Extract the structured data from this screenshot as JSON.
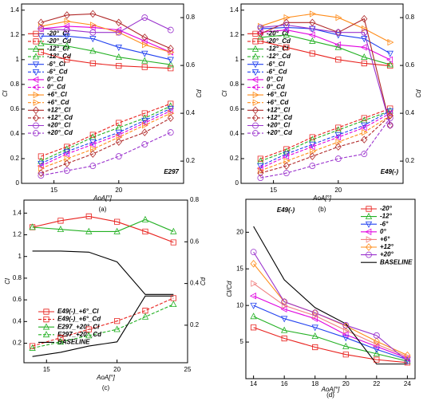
{
  "chart_data": [
    {
      "type": "line",
      "label": "(a)",
      "annotation": "E297",
      "xlabel": "AoA[°]",
      "ylabel": "Cl",
      "y2label": "Cd",
      "legend": "center-left",
      "xlim": [
        12.5,
        25
      ],
      "xticks": [
        15,
        20
      ],
      "ylim": [
        0,
        1.45
      ],
      "yticks": [
        0,
        0.2,
        0.4,
        0.6,
        0.8,
        1,
        1.2,
        1.4
      ],
      "y2lim": [
        0.107,
        0.857
      ],
      "y2ticks": [
        0.2,
        0.4,
        0.6,
        0.8
      ],
      "x": [
        14,
        16,
        18,
        20,
        22,
        24
      ],
      "series": [
        {
          "name": "-20°_Cl",
          "color": "#e8201c",
          "marker": "square",
          "dashed": false,
          "values": [
            1.06,
            1.0,
            0.97,
            0.95,
            0.94,
            0.93
          ]
        },
        {
          "name": "-20°_Cd",
          "color": "#e8201c",
          "marker": "square",
          "dashed": true,
          "axis": "y2",
          "values": [
            0.22,
            0.26,
            0.31,
            0.36,
            0.4,
            0.44
          ]
        },
        {
          "name": "-12°_Cl",
          "color": "#22b022",
          "marker": "triangle",
          "dashed": false,
          "values": [
            1.13,
            1.11,
            1.07,
            1.02,
            0.99,
            0.96
          ]
        },
        {
          "name": "-12°_Cd",
          "color": "#22b022",
          "marker": "triangle",
          "dashed": true,
          "axis": "y2",
          "values": [
            0.2,
            0.25,
            0.3,
            0.34,
            0.38,
            0.43
          ]
        },
        {
          "name": "-6°_Cl",
          "color": "#2040f0",
          "marker": "triangle-down",
          "dashed": false,
          "values": [
            1.19,
            1.19,
            1.17,
            1.1,
            1.05,
            1.0
          ]
        },
        {
          "name": "-6°_Cd",
          "color": "#2040f0",
          "marker": "triangle-down",
          "dashed": true,
          "axis": "y2",
          "values": [
            0.19,
            0.24,
            0.28,
            0.32,
            0.37,
            0.42
          ]
        },
        {
          "name": "0°_Cl",
          "color": "#e000e0",
          "marker": "triangle-left",
          "dashed": false,
          "values": [
            1.25,
            1.27,
            1.26,
            1.24,
            1.15,
            1.06
          ]
        },
        {
          "name": "0°_Cd",
          "color": "#e000e0",
          "marker": "triangle-left",
          "dashed": true,
          "axis": "y2",
          "values": [
            0.18,
            0.23,
            0.27,
            0.31,
            0.36,
            0.41
          ]
        },
        {
          "name": "+6°_Cl",
          "color": "#ff8c1a",
          "marker": "triangle-right",
          "dashed": false,
          "values": [
            1.27,
            1.31,
            1.28,
            1.22,
            1.12,
            1.06
          ]
        },
        {
          "name": "+6°_Cd",
          "color": "#ff8c1a",
          "marker": "triangle-right",
          "dashed": true,
          "axis": "y2",
          "values": [
            0.17,
            0.21,
            0.25,
            0.3,
            0.35,
            0.4
          ]
        },
        {
          "name": "+12°_Cl",
          "color": "#b02828",
          "marker": "diamond",
          "dashed": false,
          "values": [
            1.3,
            1.36,
            1.37,
            1.3,
            1.18,
            1.09
          ]
        },
        {
          "name": "+12°_Cd",
          "color": "#b02828",
          "marker": "diamond",
          "dashed": true,
          "axis": "y2",
          "values": [
            0.15,
            0.19,
            0.23,
            0.28,
            0.32,
            0.38
          ]
        },
        {
          "name": "+20°_Cl",
          "color": "#9a32cd",
          "marker": "circle",
          "dashed": false,
          "values": [
            1.25,
            1.24,
            1.22,
            1.22,
            1.34,
            1.24
          ]
        },
        {
          "name": "+20°_Cd",
          "color": "#9a32cd",
          "marker": "circle",
          "dashed": true,
          "axis": "y2",
          "values": [
            0.14,
            0.16,
            0.18,
            0.22,
            0.27,
            0.32
          ]
        }
      ]
    },
    {
      "type": "line",
      "label": "(b)",
      "annotation": "E49(-)",
      "xlabel": "AoA[°]",
      "ylabel": "Cl",
      "y2label": "Cd",
      "legend": "center-left",
      "xlim": [
        12.5,
        25
      ],
      "xticks": [
        15,
        20
      ],
      "ylim": [
        0,
        1.45
      ],
      "yticks": [
        0,
        0.2,
        0.4,
        0.6,
        0.8,
        1,
        1.2,
        1.4
      ],
      "y2lim": [
        0.107,
        0.857
      ],
      "y2ticks": [
        0.2,
        0.4,
        0.6,
        0.8
      ],
      "x": [
        14,
        16,
        18,
        20,
        22,
        24
      ],
      "series": [
        {
          "name": "-20°_Cl",
          "color": "#e8201c",
          "marker": "square",
          "dashed": false,
          "values": [
            1.15,
            1.1,
            1.05,
            1.0,
            0.97,
            0.95
          ]
        },
        {
          "name": "-20°_Cd",
          "color": "#e8201c",
          "marker": "square",
          "dashed": true,
          "axis": "y2",
          "values": [
            0.21,
            0.25,
            0.3,
            0.34,
            0.38,
            0.42
          ]
        },
        {
          "name": "-12°_Cl",
          "color": "#22b022",
          "marker": "triangle",
          "dashed": false,
          "values": [
            1.18,
            1.2,
            1.15,
            1.1,
            1.02,
            0.96
          ]
        },
        {
          "name": "-12°_Cd",
          "color": "#22b022",
          "marker": "triangle",
          "dashed": true,
          "axis": "y2",
          "values": [
            0.2,
            0.24,
            0.29,
            0.33,
            0.37,
            0.41
          ]
        },
        {
          "name": "-6°_Cl",
          "color": "#2040f0",
          "marker": "triangle-down",
          "dashed": false,
          "values": [
            1.25,
            1.26,
            1.25,
            1.2,
            1.17,
            1.05
          ]
        },
        {
          "name": "-6°_Cd",
          "color": "#2040f0",
          "marker": "triangle-down",
          "dashed": true,
          "axis": "y2",
          "values": [
            0.18,
            0.23,
            0.27,
            0.31,
            0.35,
            0.41
          ]
        },
        {
          "name": "0°_Cl",
          "color": "#e000e0",
          "marker": "triangle-left",
          "dashed": false,
          "values": [
            1.22,
            1.24,
            1.2,
            1.12,
            1.1,
            1.0
          ]
        },
        {
          "name": "0°_Cd",
          "color": "#e000e0",
          "marker": "triangle-left",
          "dashed": true,
          "axis": "y2",
          "values": [
            0.17,
            0.22,
            0.26,
            0.3,
            0.34,
            0.4
          ]
        },
        {
          "name": "+6°_Cl",
          "color": "#ff8c1a",
          "marker": "triangle-right",
          "dashed": false,
          "values": [
            1.27,
            1.34,
            1.37,
            1.34,
            1.25,
            1.14
          ]
        },
        {
          "name": "+6°_Cd",
          "color": "#ff8c1a",
          "marker": "triangle-right",
          "dashed": true,
          "axis": "y2",
          "values": [
            0.16,
            0.2,
            0.24,
            0.28,
            0.32,
            0.39
          ]
        },
        {
          "name": "+12°_Cl",
          "color": "#b02828",
          "marker": "diamond",
          "dashed": false,
          "values": [
            1.21,
            1.3,
            1.3,
            1.22,
            1.33,
            0.47
          ]
        },
        {
          "name": "+12°_Cd",
          "color": "#b02828",
          "marker": "diamond",
          "dashed": true,
          "axis": "y2",
          "values": [
            0.15,
            0.18,
            0.22,
            0.26,
            0.29,
            0.39
          ]
        },
        {
          "name": "+20°_Cl",
          "color": "#9a32cd",
          "marker": "circle",
          "dashed": false,
          "values": [
            1.26,
            1.28,
            1.25,
            1.22,
            1.22,
            0.47
          ]
        },
        {
          "name": "+20°_Cd",
          "color": "#9a32cd",
          "marker": "circle",
          "dashed": true,
          "axis": "y2",
          "values": [
            0.13,
            0.15,
            0.18,
            0.21,
            0.23,
            0.38
          ]
        }
      ]
    },
    {
      "type": "line",
      "label": "(c)",
      "xlabel": "AoA[°]",
      "ylabel": "Cl",
      "y2label": "Cd",
      "legend": "lower-left",
      "xlim": [
        13.4,
        25
      ],
      "xticks": [
        15,
        20,
        25
      ],
      "ylim": [
        0.02,
        1.52
      ],
      "yticks": [
        0.2,
        0.4,
        0.6,
        0.8,
        1,
        1.2,
        1.4
      ],
      "y2lim": [
        0.02,
        0.8
      ],
      "y2ticks": [
        0.2,
        0.4,
        0.6,
        0.8
      ],
      "x": [
        14,
        16,
        18,
        20,
        22,
        24
      ],
      "series": [
        {
          "name": "E49(-)_+6°_Cl",
          "color": "#e8201c",
          "marker": "square",
          "dashed": false,
          "values": [
            1.27,
            1.33,
            1.37,
            1.32,
            1.23,
            1.13
          ]
        },
        {
          "name": "E49(-)_+6°_Cd",
          "color": "#e8201c",
          "marker": "square",
          "dashed": true,
          "axis": "y2",
          "values": [
            0.1,
            0.14,
            0.18,
            0.22,
            0.27,
            0.33
          ]
        },
        {
          "name": "E297_+20°_Cl",
          "color": "#22b022",
          "marker": "triangle",
          "dashed": false,
          "values": [
            1.27,
            1.25,
            1.23,
            1.23,
            1.34,
            1.23
          ]
        },
        {
          "name": "E297_+20°_Cd",
          "color": "#22b022",
          "marker": "triangle",
          "dashed": true,
          "axis": "y2",
          "values": [
            0.09,
            0.12,
            0.15,
            0.18,
            0.24,
            0.3
          ]
        },
        {
          "name": "BASELINE",
          "color": "#000000",
          "dashed": false,
          "values": [
            1.05,
            1.05,
            1.04,
            0.95,
            0.65,
            0.65
          ]
        },
        {
          "color": "#000000",
          "dashed": false,
          "axis": "y2",
          "values": [
            0.05,
            0.07,
            0.1,
            0.12,
            0.34,
            0.34
          ]
        }
      ]
    },
    {
      "type": "line",
      "label": "(d)",
      "annotation": "E49(-)",
      "xlabel": "AoA[°]",
      "ylabel": "Cl/Cd",
      "legend": "upper-right",
      "xlim": [
        13.5,
        24.5
      ],
      "xticks": [
        14,
        16,
        18,
        20,
        22,
        24
      ],
      "ylim": [
        0,
        24.5
      ],
      "yticks": [
        5,
        10,
        15,
        20
      ],
      "x": [
        14,
        16,
        18,
        20,
        22,
        24
      ],
      "series": [
        {
          "name": "-20°",
          "color": "#e8201c",
          "marker": "square",
          "dashed": false,
          "values": [
            7,
            5.5,
            4.3,
            3.3,
            2.6,
            2.2
          ]
        },
        {
          "name": "-12°",
          "color": "#22b022",
          "marker": "triangle",
          "dashed": false,
          "values": [
            8.5,
            6.6,
            5.8,
            4.4,
            3.4,
            2.4
          ]
        },
        {
          "name": "-6°",
          "color": "#2040f0",
          "marker": "triangle-down",
          "dashed": false,
          "values": [
            10,
            8.2,
            7,
            5.6,
            4,
            2.6
          ]
        },
        {
          "name": "0°",
          "color": "#e000e0",
          "marker": "triangle-left",
          "dashed": false,
          "values": [
            11.3,
            9.5,
            8.2,
            6,
            4.4,
            2.8
          ]
        },
        {
          "name": "+6°",
          "color": "#f08080",
          "marker": "triangle-right",
          "dashed": false,
          "values": [
            13,
            10,
            8.6,
            6.6,
            4.7,
            3
          ]
        },
        {
          "name": "+12°",
          "color": "#ff8c1a",
          "marker": "diamond",
          "dashed": false,
          "values": [
            15.7,
            10.5,
            9,
            7.2,
            5.1,
            3.2
          ]
        },
        {
          "name": "+20°",
          "color": "#9a32cd",
          "marker": "circle",
          "dashed": false,
          "values": [
            17.3,
            10.5,
            9,
            7.3,
            5.9,
            2.4
          ]
        },
        {
          "name": "BASELINE",
          "color": "#000000",
          "dashed": false,
          "values": [
            20.8,
            13.5,
            9.7,
            7.5,
            2,
            2
          ]
        }
      ]
    }
  ]
}
